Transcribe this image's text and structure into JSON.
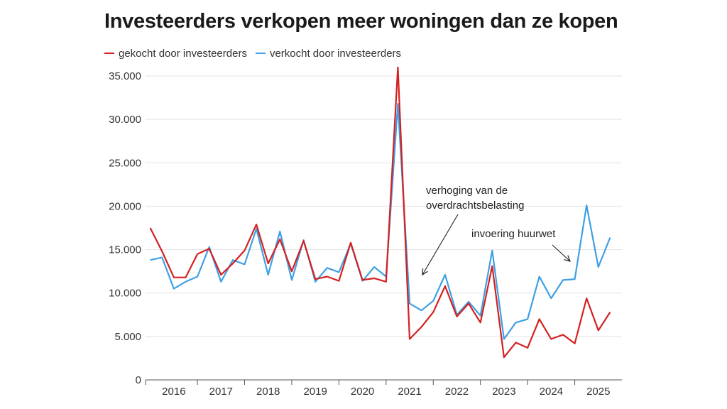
{
  "chart_data": {
    "type": "line",
    "title": "Investeerders verkopen meer woningen dan ze kopen",
    "xlabel": "",
    "ylabel": "",
    "ylim": [
      0,
      35000
    ],
    "yticks": [
      0,
      5000,
      10000,
      15000,
      20000,
      25000,
      30000,
      35000
    ],
    "ytick_labels": [
      "0",
      "5.000",
      "10.000",
      "15.000",
      "20.000",
      "25.000",
      "30.000",
      "35.000"
    ],
    "xlim": [
      2015.4,
      2025.5
    ],
    "xticks": [
      2016,
      2017,
      2018,
      2019,
      2020,
      2021,
      2022,
      2023,
      2024,
      2025
    ],
    "xtick_labels": [
      "2016",
      "2017",
      "2018",
      "2019",
      "2020",
      "2021",
      "2022",
      "2023",
      "2024",
      "2025"
    ],
    "grid": "horizontal",
    "legend_position": "top-left",
    "x": [
      2015.5,
      2015.75,
      2016.0,
      2016.25,
      2016.5,
      2016.75,
      2017.0,
      2017.25,
      2017.5,
      2017.75,
      2018.0,
      2018.25,
      2018.5,
      2018.75,
      2019.0,
      2019.25,
      2019.5,
      2019.75,
      2020.0,
      2020.25,
      2020.5,
      2020.75,
      2021.0,
      2021.25,
      2021.5,
      2021.75,
      2022.0,
      2022.25,
      2022.5,
      2022.75,
      2023.0,
      2023.25,
      2023.5,
      2023.75,
      2024.0,
      2024.25,
      2024.5,
      2024.75,
      2025.0,
      2025.25
    ],
    "series": [
      {
        "name": "gekocht door investeerders",
        "color": "#d42020",
        "values": [
          17500,
          14800,
          11800,
          11800,
          14500,
          15100,
          12100,
          13400,
          14900,
          17900,
          13400,
          16200,
          12500,
          16000,
          11600,
          11900,
          11400,
          15800,
          11500,
          11700,
          11300,
          36000,
          4700,
          6100,
          7800,
          10800,
          7300,
          8800,
          6600,
          13100,
          2600,
          4300,
          3700,
          7000,
          4700,
          5200,
          4200,
          9400,
          5700,
          7800
        ]
      },
      {
        "name": "verkocht door investeerders",
        "color": "#3ea0e4",
        "values": [
          13800,
          14100,
          10500,
          11300,
          11900,
          15300,
          11300,
          13800,
          13300,
          17400,
          12100,
          17100,
          11500,
          16100,
          11300,
          12900,
          12400,
          15700,
          11400,
          13000,
          11900,
          31800,
          8800,
          8000,
          9100,
          12100,
          7500,
          9000,
          7400,
          14900,
          4700,
          6600,
          7000,
          11900,
          9400,
          11500,
          11600,
          20100,
          13000,
          16400
        ]
      }
    ],
    "annotations": [
      {
        "lines": [
          "verhoging van de",
          "overdrachtsbelasting"
        ]
      },
      {
        "lines": [
          "invoering huurwet"
        ]
      }
    ]
  }
}
